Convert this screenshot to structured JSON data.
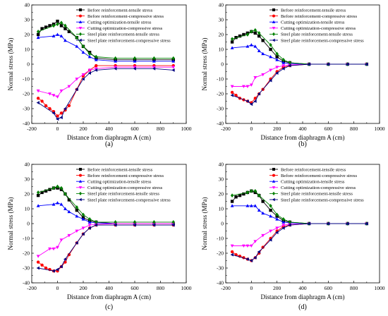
{
  "chart_data": [
    {
      "panel_label": "(a)",
      "type": "line",
      "xlabel": "Distance from diaphragm A (cm)",
      "ylabel": "Normal stress (MPa)",
      "xlim": [
        -200,
        1000
      ],
      "ylim": [
        -40,
        40
      ],
      "xticks": [
        "-200",
        "0",
        "200",
        "400",
        "600",
        "800",
        "1000"
      ],
      "yticks": [
        "-40",
        "-30",
        "-20",
        "-10",
        "0",
        "10",
        "20",
        "30",
        "40"
      ],
      "legend_position": "top-right",
      "series": [
        {
          "name": "Before reinforcement-tensile stress",
          "color": "#000000",
          "marker": "square",
          "x": [
            -150,
            -120,
            -90,
            -60,
            -30,
            0,
            30,
            60,
            90,
            150,
            200,
            250,
            300,
            450,
            600,
            750,
            900
          ],
          "y": [
            20,
            24,
            25,
            26,
            27,
            29,
            26,
            24,
            22,
            18,
            12,
            8,
            4,
            3,
            3,
            3,
            3
          ]
        },
        {
          "name": "Before reinforcement-compressive stress",
          "color": "#ff0000",
          "marker": "circle",
          "x": [
            -150,
            -120,
            -90,
            -60,
            -30,
            0,
            30,
            60,
            90,
            150,
            200,
            250,
            300,
            450,
            600,
            750,
            900
          ],
          "y": [
            -23,
            -25,
            -28,
            -30,
            -32,
            -35,
            -33,
            -31,
            -28,
            -17,
            -8,
            -4,
            -1,
            -1,
            -1,
            -1,
            -1
          ]
        },
        {
          "name": "Cutting optimization-tensile stress",
          "color": "#0000ff",
          "marker": "triangle-up",
          "x": [
            -150,
            -30,
            0,
            30,
            60,
            150,
            200,
            250,
            300,
            450,
            600,
            750,
            900
          ],
          "y": [
            18,
            19,
            20,
            19,
            16,
            12,
            8,
            5,
            3,
            2,
            2,
            2,
            2
          ]
        },
        {
          "name": "Cutting optimization-compressive stress",
          "color": "#ff00ff",
          "marker": "triangle-down",
          "x": [
            -150,
            -60,
            -30,
            0,
            30,
            90,
            150,
            200,
            250,
            300,
            450,
            600,
            750,
            900
          ],
          "y": [
            -18,
            -20,
            -21,
            -22,
            -18,
            -15,
            -10,
            -7,
            -4,
            -3,
            -2,
            -2,
            -2,
            -2
          ]
        },
        {
          "name": "Steel plate reinforcement-tensile stress",
          "color": "#008000",
          "marker": "diamond",
          "x": [
            -150,
            -30,
            0,
            30,
            60,
            150,
            200,
            250,
            300,
            450,
            600,
            750,
            900
          ],
          "y": [
            22,
            26,
            27,
            28,
            26,
            18,
            12,
            7,
            5,
            4,
            4,
            4,
            4
          ]
        },
        {
          "name": "Steel plate reinforcement-compressive stress",
          "color": "#000080",
          "marker": "triangle-left",
          "x": [
            -150,
            -30,
            0,
            30,
            60,
            150,
            200,
            250,
            300,
            450,
            600,
            750,
            900
          ],
          "y": [
            -26,
            -33,
            -37,
            -36,
            -30,
            -17,
            -10,
            -6,
            -4,
            -3,
            -3,
            -3,
            -4
          ]
        }
      ]
    },
    {
      "panel_label": "(b)",
      "type": "line",
      "xlabel": "Distance from diaphragm A (cm)",
      "ylabel": "Normal stress (MPa)",
      "xlim": [
        -200,
        1000
      ],
      "ylim": [
        -40,
        40
      ],
      "xticks": [
        "-200",
        "0",
        "200",
        "400",
        "600",
        "800",
        "1000"
      ],
      "yticks": [
        "-40",
        "-30",
        "-20",
        "-10",
        "0",
        "10",
        "20",
        "30",
        "40"
      ],
      "legend_position": "top-right",
      "series": [
        {
          "name": "Before reinforcement-tensile stress",
          "color": "#000000",
          "marker": "square",
          "x": [
            -150,
            -120,
            -90,
            -60,
            -30,
            0,
            30,
            60,
            90,
            150,
            200,
            250,
            300,
            450,
            600,
            750,
            900
          ],
          "y": [
            15,
            18,
            19,
            20,
            21,
            22,
            21,
            19,
            16,
            10,
            5,
            2,
            1,
            0,
            0,
            0,
            0
          ]
        },
        {
          "name": "Before reinforcement-compressive stress",
          "color": "#ff0000",
          "marker": "circle",
          "x": [
            -150,
            -120,
            -90,
            -60,
            -30,
            0,
            30,
            60,
            90,
            150,
            200,
            250,
            300,
            450,
            600,
            750,
            900
          ],
          "y": [
            -19,
            -21,
            -23,
            -24,
            -25,
            -26,
            -23,
            -20,
            -17,
            -10,
            -5,
            -2,
            -1,
            0,
            0,
            0,
            0
          ]
        },
        {
          "name": "Cutting optimization-tensile stress",
          "color": "#0000ff",
          "marker": "triangle-up",
          "x": [
            -150,
            -30,
            0,
            30,
            60,
            90,
            150,
            200,
            250,
            300,
            450,
            600,
            750,
            900
          ],
          "y": [
            11,
            12,
            13,
            12,
            9,
            7,
            5,
            3,
            1,
            0.5,
            0,
            0,
            0,
            0
          ]
        },
        {
          "name": "Cutting optimization-compressive stress",
          "color": "#ff00ff",
          "marker": "triangle-down",
          "x": [
            -150,
            -60,
            -30,
            0,
            30,
            90,
            150,
            200,
            250,
            300,
            450,
            600,
            750,
            900
          ],
          "y": [
            -15,
            -15,
            -15,
            -14,
            -9,
            -7,
            -4,
            -2,
            -1,
            -0.5,
            0,
            0,
            0,
            0
          ]
        },
        {
          "name": "Steel plate reinforcement-tensile stress",
          "color": "#008000",
          "marker": "diamond",
          "x": [
            -150,
            -30,
            0,
            30,
            60,
            150,
            200,
            250,
            300,
            450,
            600,
            750,
            900
          ],
          "y": [
            17,
            20,
            22,
            23,
            21,
            13,
            7,
            3,
            1,
            0,
            0,
            0,
            0
          ]
        },
        {
          "name": "Steel plate reinforcement-compressive stress",
          "color": "#000080",
          "marker": "triangle-left",
          "x": [
            -150,
            -30,
            0,
            30,
            60,
            150,
            200,
            250,
            300,
            450,
            600,
            750,
            900
          ],
          "y": [
            -21,
            -25,
            -27,
            -25,
            -20,
            -11,
            -6,
            -3,
            -1,
            0,
            0,
            0,
            0
          ]
        }
      ]
    },
    {
      "panel_label": "(c)",
      "type": "line",
      "xlabel": "Distance from diaphragm A (cm)",
      "ylabel": "Normal stress (MPa)",
      "xlim": [
        -200,
        1000
      ],
      "ylim": [
        -40,
        40
      ],
      "xticks": [
        "-200",
        "0",
        "200",
        "400",
        "600",
        "800",
        "1000"
      ],
      "yticks": [
        "-40",
        "-30",
        "-20",
        "-10",
        "0",
        "10",
        "20",
        "30",
        "40"
      ],
      "legend_position": "top-right",
      "series": [
        {
          "name": "Before reinforcement-tensile stress",
          "color": "#000000",
          "marker": "square",
          "x": [
            -150,
            -120,
            -90,
            -60,
            -30,
            0,
            30,
            60,
            90,
            150,
            200,
            250,
            300,
            450,
            600,
            750,
            900
          ],
          "y": [
            19,
            21,
            22,
            23,
            24,
            24,
            23,
            20,
            16,
            9,
            4,
            2,
            1,
            0,
            0,
            0,
            0
          ]
        },
        {
          "name": "Before reinforcement-compressive stress",
          "color": "#ff0000",
          "marker": "circle",
          "x": [
            -150,
            -120,
            -90,
            -60,
            -30,
            0,
            30,
            60,
            90,
            150,
            200,
            250,
            300,
            450,
            600,
            750,
            900
          ],
          "y": [
            -26,
            -28,
            -30,
            -31,
            -32,
            -32,
            -29,
            -26,
            -21,
            -13,
            -7,
            -3,
            -1,
            -1,
            -1,
            -1,
            -1
          ]
        },
        {
          "name": "Cutting optimization-tensile stress",
          "color": "#0000ff",
          "marker": "triangle-up",
          "x": [
            -150,
            -30,
            0,
            30,
            60,
            90,
            150,
            200,
            250,
            300,
            450,
            600,
            750,
            900
          ],
          "y": [
            12,
            13,
            14,
            13,
            10,
            8,
            5,
            3,
            1,
            0.5,
            0,
            0,
            0,
            0
          ]
        },
        {
          "name": "Cutting optimization-compressive stress",
          "color": "#ff00ff",
          "marker": "triangle-down",
          "x": [
            -150,
            -60,
            -30,
            0,
            30,
            90,
            150,
            200,
            250,
            300,
            450,
            600,
            750,
            900
          ],
          "y": [
            -22,
            -17,
            -17,
            -16,
            -11,
            -8,
            -5,
            -3,
            -1,
            -0.5,
            0,
            0,
            0,
            0
          ]
        },
        {
          "name": "Steel plate reinforcement-tensile stress",
          "color": "#008000",
          "marker": "diamond",
          "x": [
            -150,
            -30,
            0,
            30,
            60,
            150,
            200,
            250,
            300,
            450,
            600,
            750,
            900
          ],
          "y": [
            21,
            24,
            25,
            24,
            20,
            11,
            6,
            3,
            1,
            1,
            1,
            1,
            1
          ]
        },
        {
          "name": "Steel plate reinforcement-compressive stress",
          "color": "#000080",
          "marker": "triangle-left",
          "x": [
            -150,
            -30,
            0,
            30,
            60,
            150,
            200,
            250,
            300,
            450,
            600,
            750,
            900
          ],
          "y": [
            -30,
            -32,
            -31,
            -29,
            -24,
            -13,
            -7,
            -3,
            -1,
            -1,
            -1,
            -1,
            -1
          ]
        }
      ]
    },
    {
      "panel_label": "(d)",
      "type": "line",
      "xlabel": "Distance from diaphragm A (cm)",
      "ylabel": "Normal stress (MPa)",
      "xlim": [
        -200,
        1000
      ],
      "ylim": [
        -40,
        40
      ],
      "xticks": [
        "-200",
        "0",
        "200",
        "400",
        "600",
        "800",
        "1000"
      ],
      "yticks": [
        "-40",
        "-30",
        "-20",
        "-10",
        "0",
        "10",
        "20",
        "30",
        "40"
      ],
      "legend_position": "top-right",
      "series": [
        {
          "name": "Before reinforcement-tensile stress",
          "color": "#000000",
          "marker": "square",
          "x": [
            -150,
            -120,
            -90,
            -60,
            -30,
            0,
            30,
            60,
            90,
            150,
            200,
            250,
            300,
            450,
            600,
            750,
            900
          ],
          "y": [
            15,
            18,
            19,
            20,
            21,
            22,
            21,
            19,
            15,
            9,
            5,
            2,
            1,
            0,
            0,
            0,
            0
          ]
        },
        {
          "name": "Before reinforcement-compressive stress",
          "color": "#ff0000",
          "marker": "circle",
          "x": [
            -150,
            -120,
            -90,
            -60,
            -30,
            0,
            30,
            60,
            90,
            150,
            200,
            250,
            300,
            450,
            600,
            750,
            900
          ],
          "y": [
            -19,
            -21,
            -22,
            -23,
            -24,
            -25,
            -23,
            -20,
            -16,
            -10,
            -5,
            -2,
            -1,
            0,
            0,
            0,
            0
          ]
        },
        {
          "name": "Cutting optimization-tensile stress",
          "color": "#0000ff",
          "marker": "triangle-up",
          "x": [
            -150,
            -30,
            0,
            30,
            60,
            90,
            150,
            200,
            250,
            300,
            450,
            600,
            750,
            900
          ],
          "y": [
            12,
            12,
            12,
            12,
            9,
            7,
            5,
            3,
            1,
            0.5,
            0,
            0,
            0,
            0
          ]
        },
        {
          "name": "Cutting optimization-compressive stress",
          "color": "#ff00ff",
          "marker": "triangle-down",
          "x": [
            -150,
            -60,
            -30,
            0,
            30,
            90,
            150,
            200,
            250,
            300,
            450,
            600,
            750,
            900
          ],
          "y": [
            -15,
            -15,
            -15,
            -15,
            -12,
            -8,
            -5,
            -3,
            -1,
            -0.5,
            0,
            0,
            0,
            0
          ]
        },
        {
          "name": "Steel plate reinforcement-tensile stress",
          "color": "#008000",
          "marker": "diamond",
          "x": [
            -150,
            -30,
            0,
            30,
            60,
            150,
            200,
            250,
            300,
            450,
            600,
            750,
            900
          ],
          "y": [
            19,
            21,
            22,
            22,
            19,
            12,
            6,
            3,
            1,
            0,
            0,
            0,
            0
          ]
        },
        {
          "name": "Steel plate reinforcement-compressive stress",
          "color": "#000080",
          "marker": "triangle-left",
          "x": [
            -150,
            -30,
            0,
            30,
            60,
            150,
            200,
            250,
            300,
            450,
            600,
            750,
            900
          ],
          "y": [
            -21,
            -24,
            -25,
            -23,
            -19,
            -11,
            -6,
            -3,
            -1,
            0,
            0,
            0,
            0
          ]
        }
      ]
    }
  ]
}
